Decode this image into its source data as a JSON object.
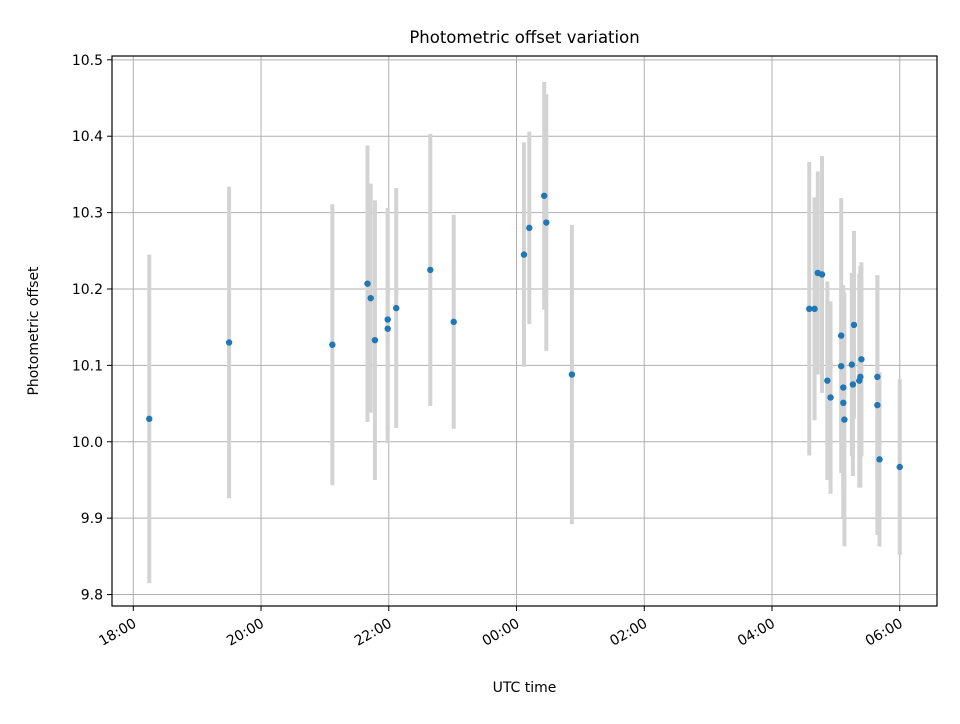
{
  "colors": {
    "point": "#1f77b4",
    "errorbar": "#d3d3d3",
    "grid": "#b0b0b0",
    "axes": "#000000"
  },
  "chart_data": {
    "type": "scatter",
    "title": "Photometric offset variation",
    "xlabel": "UTC time",
    "ylabel": "Photometric offset",
    "grid": true,
    "xlim": [
      "17:40",
      "06:35"
    ],
    "ylim": [
      9.785,
      10.505
    ],
    "x_ticks": [
      "18:00",
      "20:00",
      "22:00",
      "00:00",
      "02:00",
      "04:00",
      "06:00"
    ],
    "y_ticks": [
      "9.8",
      "9.9",
      "10.0",
      "10.1",
      "10.2",
      "10.3",
      "10.4",
      "10.5"
    ],
    "points": [
      {
        "t": "18:15",
        "y": 10.03,
        "err": 0.215
      },
      {
        "t": "19:30",
        "y": 10.13,
        "err": 0.204
      },
      {
        "t": "21:07",
        "y": 10.127,
        "err": 0.184
      },
      {
        "t": "21:40",
        "y": 10.207,
        "err": 0.181
      },
      {
        "t": "21:43",
        "y": 10.188,
        "err": 0.15
      },
      {
        "t": "21:47",
        "y": 10.133,
        "err": 0.183
      },
      {
        "t": "21:59",
        "y": 10.16,
        "err": 0.146
      },
      {
        "t": "21:59",
        "y": 10.148,
        "err": 0.15
      },
      {
        "t": "22:07",
        "y": 10.175,
        "err": 0.157
      },
      {
        "t": "22:39",
        "y": 10.225,
        "err": 0.178
      },
      {
        "t": "23:01",
        "y": 10.157,
        "err": 0.14
      },
      {
        "t": "00:07",
        "y": 10.245,
        "err": 0.147
      },
      {
        "t": "00:12",
        "y": 10.28,
        "err": 0.126
      },
      {
        "t": "00:26",
        "y": 10.322,
        "err": 0.149
      },
      {
        "t": "00:28",
        "y": 10.287,
        "err": 0.168
      },
      {
        "t": "00:52",
        "y": 10.088,
        "err": 0.196
      },
      {
        "t": "04:35",
        "y": 10.174,
        "err": 0.192
      },
      {
        "t": "04:40",
        "y": 10.174,
        "err": 0.146
      },
      {
        "t": "04:43",
        "y": 10.221,
        "err": 0.133
      },
      {
        "t": "04:47",
        "y": 10.219,
        "err": 0.155
      },
      {
        "t": "04:52",
        "y": 10.08,
        "err": 0.13
      },
      {
        "t": "04:55",
        "y": 10.058,
        "err": 0.126
      },
      {
        "t": "05:05",
        "y": 10.139,
        "err": 0.18
      },
      {
        "t": "05:05",
        "y": 10.099,
        "err": 0.1
      },
      {
        "t": "05:07",
        "y": 10.071,
        "err": 0.134
      },
      {
        "t": "05:07",
        "y": 10.051,
        "err": 0.15
      },
      {
        "t": "05:08",
        "y": 10.029,
        "err": 0.166
      },
      {
        "t": "05:15",
        "y": 10.101,
        "err": 0.12
      },
      {
        "t": "05:16",
        "y": 10.075,
        "err": 0.12
      },
      {
        "t": "05:17",
        "y": 10.153,
        "err": 0.123
      },
      {
        "t": "05:22",
        "y": 10.08,
        "err": 0.14
      },
      {
        "t": "05:23",
        "y": 10.085,
        "err": 0.145
      },
      {
        "t": "05:24",
        "y": 10.108,
        "err": 0.127
      },
      {
        "t": "05:39",
        "y": 10.085,
        "err": 0.133
      },
      {
        "t": "05:39",
        "y": 10.048,
        "err": 0.17
      },
      {
        "t": "05:41",
        "y": 9.977,
        "err": 0.114
      },
      {
        "t": "06:00",
        "y": 9.967,
        "err": 0.115
      }
    ]
  }
}
